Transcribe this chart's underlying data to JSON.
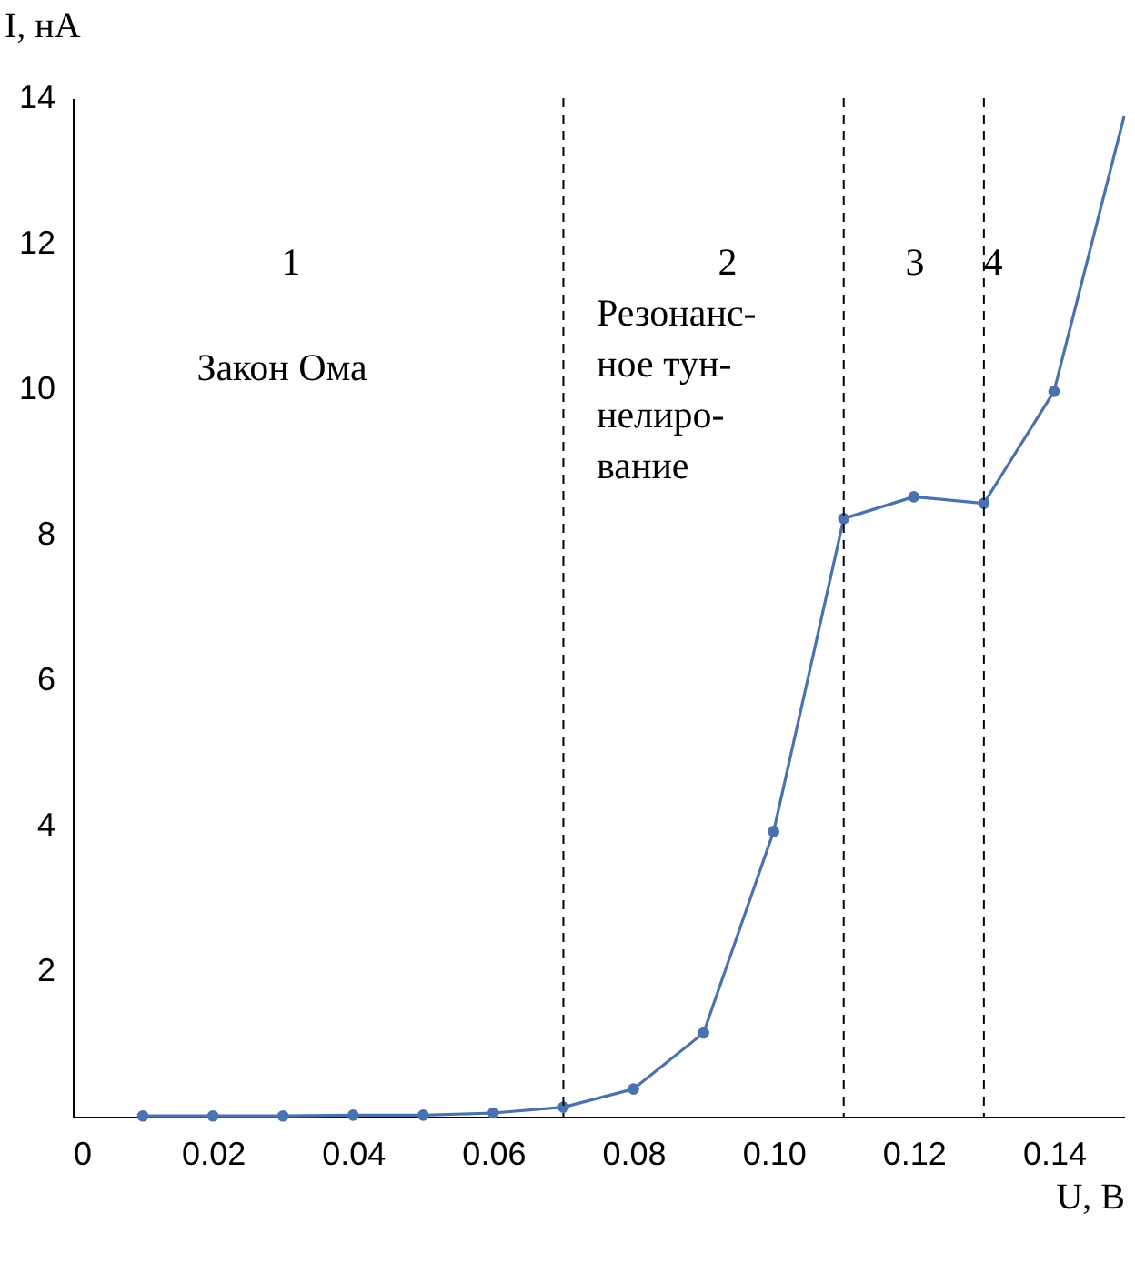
{
  "chart_data": {
    "type": "line",
    "xlabel": "U, В",
    "ylabel": "I, нА",
    "xlim": [
      0,
      0.15
    ],
    "ylim": [
      0,
      14
    ],
    "xticks": [
      {
        "value": 0,
        "label": "0"
      },
      {
        "value": 0.02,
        "label": "0.02"
      },
      {
        "value": 0.04,
        "label": "0.04"
      },
      {
        "value": 0.06,
        "label": "0.06"
      },
      {
        "value": 0.08,
        "label": "0.08"
      },
      {
        "value": 0.1,
        "label": "0.10"
      },
      {
        "value": 0.12,
        "label": "0.12"
      },
      {
        "value": 0.14,
        "label": "0.14"
      }
    ],
    "yticks": [
      2,
      4,
      6,
      8,
      10,
      12,
      14
    ],
    "grid": false,
    "series": [
      {
        "type": "line",
        "marker": "none",
        "color": "#4a72b0",
        "x": [
          0.01,
          0.02,
          0.03,
          0.04,
          0.05,
          0.06,
          0.07,
          0.08,
          0.09,
          0.1,
          0.11,
          0.12,
          0.13,
          0.14,
          0.15
        ],
        "values": [
          0.01,
          0.01,
          0.01,
          0.02,
          0.02,
          0.05,
          0.13,
          0.38,
          1.15,
          3.92,
          8.22,
          8.52,
          8.43,
          9.97,
          13.75
        ]
      },
      {
        "type": "scatter",
        "marker": "circle",
        "color": "#4a72b0",
        "x": [
          0.01,
          0.02,
          0.03,
          0.04,
          0.05,
          0.06,
          0.07,
          0.08,
          0.09,
          0.1,
          0.11,
          0.12,
          0.13,
          0.14
        ],
        "values": [
          0.01,
          0.01,
          0.01,
          0.02,
          0.02,
          0.05,
          0.13,
          0.38,
          1.15,
          3.92,
          8.22,
          8.52,
          8.43,
          9.97
        ]
      }
    ],
    "ref_lines": [
      {
        "axis": "x",
        "value": 0.07,
        "color": "#000000",
        "line_style": "dashed"
      },
      {
        "axis": "x",
        "value": 0.11,
        "color": "#000000",
        "line_style": "dashed"
      },
      {
        "axis": "x",
        "value": 0.13,
        "color": "#000000",
        "line_style": "dashed"
      }
    ],
    "annotations": [
      "1",
      "Закон Ома",
      "2",
      "Резонанс-\nное тун-\nнелиро-\nвание",
      "3",
      "4"
    ]
  }
}
